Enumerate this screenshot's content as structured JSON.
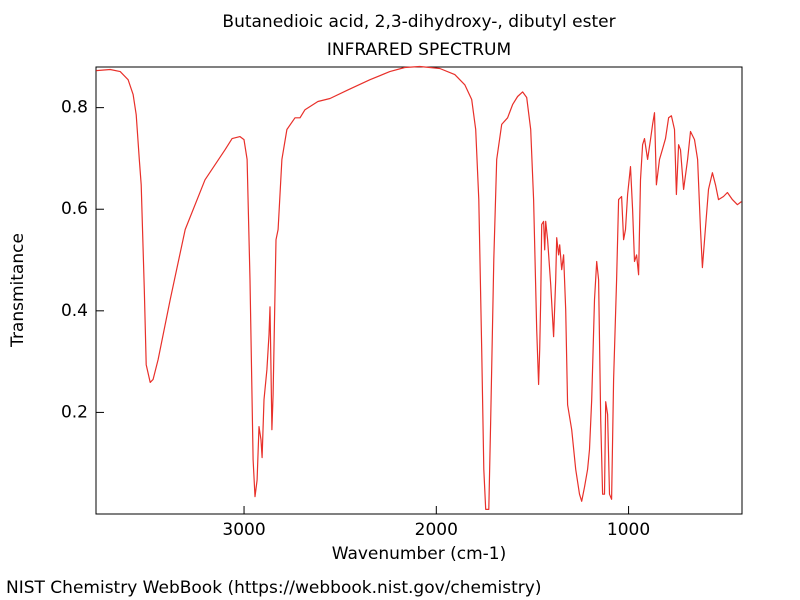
{
  "chart_data": {
    "type": "line",
    "title": "Butanedioic acid, 2,3-dihydroxy-, dibutyl ester",
    "subtitle": "INFRARED SPECTRUM",
    "x_label": "Wavenumber (cm-1)",
    "y_label": "Transmitance",
    "color": "#e8302a",
    "xlim": [
      3770,
      410
    ],
    "ylim": [
      0,
      0.88
    ],
    "xticks": [
      3000,
      2000,
      1000
    ],
    "yticks": [
      0.2,
      0.4,
      0.6,
      0.8
    ],
    "x": [
      3769,
      3696,
      3644,
      3603,
      3577,
      3561,
      3545,
      3535,
      3519,
      3509,
      3488,
      3473,
      3447,
      3384,
      3306,
      3203,
      3099,
      3062,
      3021,
      3000,
      2984,
      2969,
      2953,
      2943,
      2932,
      2922,
      2912,
      2906,
      2896,
      2881,
      2870,
      2865,
      2860,
      2855,
      2849,
      2834,
      2823,
      2803,
      2777,
      2735,
      2709,
      2683,
      2616,
      2553,
      2460,
      2345,
      2242,
      2164,
      2086,
      1982,
      1904,
      1852,
      1816,
      1795,
      1779,
      1764,
      1753,
      1743,
      1727,
      1717,
      1701,
      1686,
      1660,
      1629,
      1603,
      1577,
      1551,
      1530,
      1509,
      1494,
      1478,
      1468,
      1462,
      1457,
      1452,
      1442,
      1436,
      1431,
      1421,
      1405,
      1390,
      1379,
      1374,
      1364,
      1358,
      1348,
      1338,
      1327,
      1317,
      1296,
      1275,
      1255,
      1244,
      1229,
      1213,
      1203,
      1192,
      1177,
      1166,
      1156,
      1145,
      1135,
      1125,
      1119,
      1109,
      1099,
      1088,
      1078,
      1062,
      1052,
      1036,
      1026,
      1016,
      1005,
      990,
      979,
      969,
      958,
      948,
      938,
      927,
      917,
      901,
      886,
      875,
      865,
      855,
      839,
      823,
      808,
      792,
      777,
      761,
      751,
      740,
      730,
      714,
      693,
      678,
      657,
      641,
      626,
      616,
      600,
      584,
      564,
      548,
      532,
      506,
      486,
      460,
      434,
      413
    ],
    "values": [
      0.873,
      0.875,
      0.871,
      0.855,
      0.826,
      0.786,
      0.698,
      0.648,
      0.442,
      0.294,
      0.259,
      0.265,
      0.304,
      0.422,
      0.56,
      0.658,
      0.717,
      0.739,
      0.743,
      0.737,
      0.698,
      0.461,
      0.107,
      0.034,
      0.067,
      0.172,
      0.146,
      0.111,
      0.225,
      0.284,
      0.353,
      0.408,
      0.284,
      0.166,
      0.235,
      0.54,
      0.56,
      0.698,
      0.757,
      0.78,
      0.78,
      0.796,
      0.812,
      0.818,
      0.835,
      0.855,
      0.871,
      0.879,
      0.881,
      0.877,
      0.865,
      0.845,
      0.816,
      0.757,
      0.619,
      0.324,
      0.088,
      0.009,
      0.009,
      0.186,
      0.501,
      0.698,
      0.767,
      0.78,
      0.806,
      0.822,
      0.831,
      0.82,
      0.757,
      0.619,
      0.363,
      0.255,
      0.324,
      0.422,
      0.57,
      0.576,
      0.52,
      0.576,
      0.54,
      0.452,
      0.349,
      0.461,
      0.544,
      0.51,
      0.53,
      0.481,
      0.51,
      0.402,
      0.215,
      0.166,
      0.088,
      0.039,
      0.025,
      0.053,
      0.088,
      0.127,
      0.225,
      0.422,
      0.497,
      0.461,
      0.186,
      0.039,
      0.039,
      0.221,
      0.196,
      0.039,
      0.029,
      0.265,
      0.461,
      0.619,
      0.625,
      0.54,
      0.56,
      0.629,
      0.684,
      0.599,
      0.497,
      0.51,
      0.471,
      0.658,
      0.727,
      0.739,
      0.698,
      0.737,
      0.767,
      0.79,
      0.648,
      0.698,
      0.719,
      0.739,
      0.78,
      0.784,
      0.757,
      0.629,
      0.727,
      0.717,
      0.639,
      0.698,
      0.753,
      0.737,
      0.698,
      0.56,
      0.485,
      0.564,
      0.639,
      0.672,
      0.648,
      0.619,
      0.625,
      0.633,
      0.619,
      0.609,
      0.615
    ]
  },
  "footer": "NIST Chemistry WebBook (https://webbook.nist.gov/chemistry)"
}
